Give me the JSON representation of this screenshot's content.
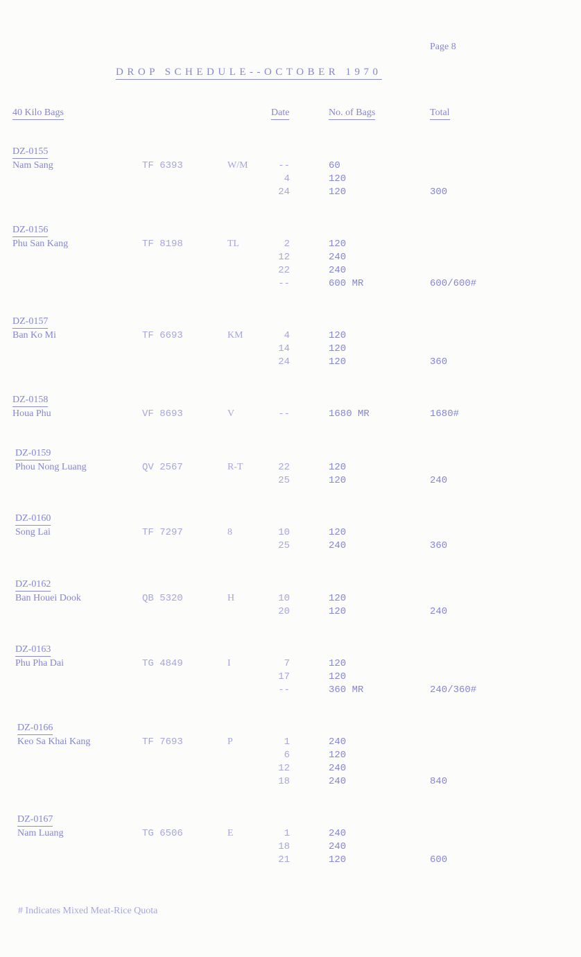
{
  "page_label": "Page 8",
  "title": "DROP SCHEDULE--OCTOBER 1970",
  "headers": {
    "section": "40 Kilo Bags",
    "date": "Date",
    "bags": "No. of Bags",
    "total": "Total"
  },
  "entries": [
    {
      "dz": "DZ-0155",
      "name": "Nam Sang",
      "grid": "TF 6393",
      "code": "W/M",
      "rows": [
        {
          "date": "--",
          "bags": "60"
        },
        {
          "date": "4",
          "bags": "120"
        },
        {
          "date": "24",
          "bags": "120"
        }
      ],
      "total": "300"
    },
    {
      "dz": "DZ-0156",
      "name": "Phu San Kang",
      "grid": "TF 8198",
      "code": "TL",
      "rows": [
        {
          "date": "2",
          "bags": "120"
        },
        {
          "date": "12",
          "bags": "240"
        },
        {
          "date": "22",
          "bags": "240"
        },
        {
          "date": "--",
          "bags": "600 MR"
        }
      ],
      "total": "600/600#"
    },
    {
      "dz": "DZ-0157",
      "name": "Ban Ko Mi",
      "grid": "TF 6693",
      "code": "KM",
      "rows": [
        {
          "date": "4",
          "bags": "120"
        },
        {
          "date": "14",
          "bags": "120"
        },
        {
          "date": "24",
          "bags": "120"
        }
      ],
      "total": "360"
    },
    {
      "dz": "DZ-0158",
      "name": "Houa Phu",
      "grid": "VF 8693",
      "code": "V",
      "rows": [
        {
          "date": "--",
          "bags": "1680 MR"
        }
      ],
      "total": "1680#"
    },
    {
      "dz": "DZ-0159",
      "name": "Phou Nong Luang",
      "grid": "QV 2567",
      "code": "R-T",
      "rows": [
        {
          "date": "22",
          "bags": "120"
        },
        {
          "date": "25",
          "bags": "120"
        }
      ],
      "total": "240"
    },
    {
      "dz": "DZ-0160",
      "name": "Song Lai",
      "grid": "TF 7297",
      "code": "8",
      "rows": [
        {
          "date": "10",
          "bags": "120"
        },
        {
          "date": "25",
          "bags": "240"
        }
      ],
      "total": "360"
    },
    {
      "dz": "DZ-0162",
      "name": "Ban Houei Dook",
      "grid": "QB 5320",
      "code": "H",
      "rows": [
        {
          "date": "10",
          "bags": "120"
        },
        {
          "date": "20",
          "bags": "120"
        }
      ],
      "total": "240"
    },
    {
      "dz": "DZ-0163",
      "name": "Phu Pha Dai",
      "grid": "TG 4849",
      "code": "I",
      "rows": [
        {
          "date": "7",
          "bags": "120"
        },
        {
          "date": "17",
          "bags": "120"
        },
        {
          "date": "--",
          "bags": "360 MR"
        }
      ],
      "total": "240/360#"
    },
    {
      "dz": "DZ-0166",
      "name": "Keo Sa Khai Kang",
      "grid": "TF 7693",
      "code": "P",
      "rows": [
        {
          "date": "1",
          "bags": "240"
        },
        {
          "date": "6",
          "bags": "120"
        },
        {
          "date": "12",
          "bags": "240"
        },
        {
          "date": "18",
          "bags": "240"
        }
      ],
      "total": "840"
    },
    {
      "dz": "DZ-0167",
      "name": "Nam Luang",
      "grid": "TG 6506",
      "code": "E",
      "rows": [
        {
          "date": "1",
          "bags": "240"
        },
        {
          "date": "18",
          "bags": "240"
        },
        {
          "date": "21",
          "bags": "120"
        }
      ],
      "total": "600"
    }
  ],
  "footnote": "# Indicates Mixed Meat-Rice Quota"
}
